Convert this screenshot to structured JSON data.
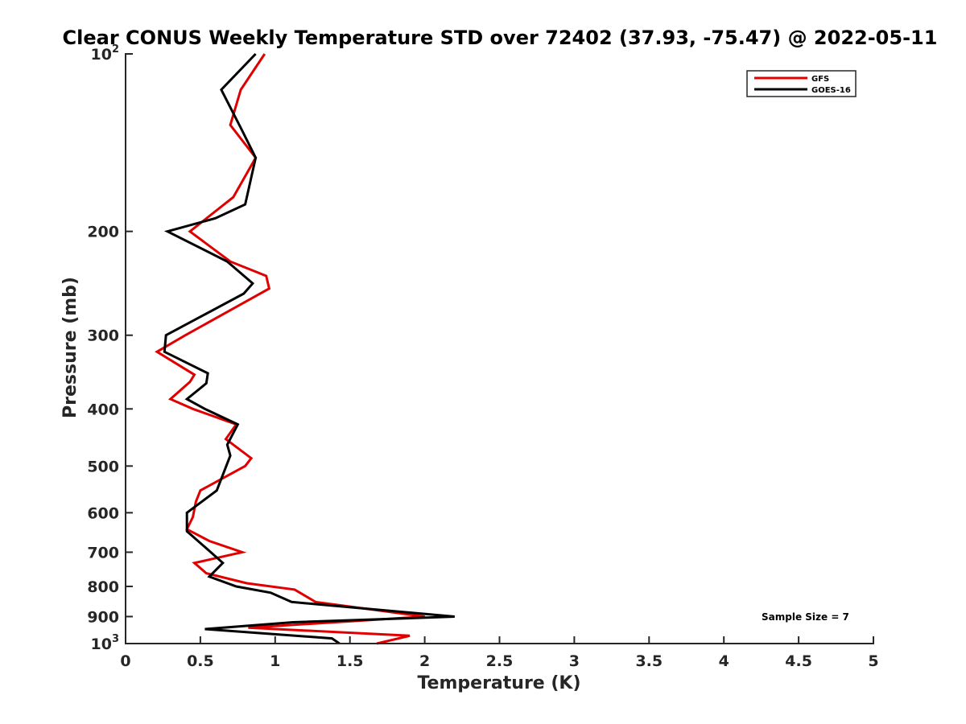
{
  "chart_data": {
    "type": "line",
    "title": "Clear CONUS Weekly Temperature STD over 72402 (37.93, -75.47) @ 2022-05-11",
    "xlabel": "Temperature (K)",
    "ylabel": "Pressure (mb)",
    "xlim": [
      0,
      5
    ],
    "ylim": [
      100,
      1000
    ],
    "y_scale": "log",
    "y_reversed": true,
    "x_ticks": [
      "0",
      "0.5",
      "1",
      "1.5",
      "2",
      "2.5",
      "3",
      "3.5",
      "4",
      "4.5",
      "5"
    ],
    "y_ticks": [
      {
        "value": 100,
        "base": "10",
        "exp": "2"
      },
      {
        "value": 200,
        "label": "200"
      },
      {
        "value": 300,
        "label": "300"
      },
      {
        "value": 400,
        "label": "400"
      },
      {
        "value": 500,
        "label": "500"
      },
      {
        "value": 600,
        "label": "600"
      },
      {
        "value": 700,
        "label": "700"
      },
      {
        "value": 800,
        "label": "800"
      },
      {
        "value": 900,
        "label": "900"
      },
      {
        "value": 1000,
        "base": "10",
        "exp": "3"
      }
    ],
    "grid": false,
    "legend_position": "top-right",
    "annotation": "Sample Size = 7",
    "series": [
      {
        "name": "GFS",
        "color": "#e00000",
        "points": [
          [
            0.93,
            100
          ],
          [
            0.77,
            115
          ],
          [
            0.7,
            132
          ],
          [
            0.87,
            150
          ],
          [
            0.72,
            175
          ],
          [
            0.43,
            200
          ],
          [
            0.7,
            225
          ],
          [
            0.94,
            238
          ],
          [
            0.96,
            250
          ],
          [
            0.4,
            300
          ],
          [
            0.21,
            320
          ],
          [
            0.46,
            350
          ],
          [
            0.43,
            360
          ],
          [
            0.3,
            385
          ],
          [
            0.45,
            400
          ],
          [
            0.74,
            425
          ],
          [
            0.67,
            450
          ],
          [
            0.84,
            485
          ],
          [
            0.8,
            500
          ],
          [
            0.5,
            550
          ],
          [
            0.47,
            575
          ],
          [
            0.45,
            610
          ],
          [
            0.41,
            640
          ],
          [
            0.56,
            670
          ],
          [
            0.78,
            700
          ],
          [
            0.46,
            730
          ],
          [
            0.54,
            760
          ],
          [
            0.81,
            790
          ],
          [
            1.13,
            810
          ],
          [
            1.27,
            850
          ],
          [
            2.0,
            900
          ],
          [
            0.82,
            940
          ],
          [
            1.9,
            970
          ],
          [
            1.68,
            1000
          ]
        ]
      },
      {
        "name": "GOES-16",
        "color": "#000000",
        "points": [
          [
            0.87,
            100
          ],
          [
            0.64,
            115
          ],
          [
            0.78,
            135
          ],
          [
            0.87,
            150
          ],
          [
            0.8,
            180
          ],
          [
            0.6,
            190
          ],
          [
            0.28,
            200
          ],
          [
            0.68,
            225
          ],
          [
            0.85,
            245
          ],
          [
            0.79,
            255
          ],
          [
            0.27,
            300
          ],
          [
            0.26,
            320
          ],
          [
            0.55,
            348
          ],
          [
            0.54,
            362
          ],
          [
            0.41,
            385
          ],
          [
            0.53,
            400
          ],
          [
            0.75,
            425
          ],
          [
            0.68,
            460
          ],
          [
            0.7,
            480
          ],
          [
            0.61,
            550
          ],
          [
            0.41,
            600
          ],
          [
            0.41,
            645
          ],
          [
            0.57,
            700
          ],
          [
            0.65,
            730
          ],
          [
            0.56,
            770
          ],
          [
            0.74,
            800
          ],
          [
            0.97,
            820
          ],
          [
            1.11,
            850
          ],
          [
            2.2,
            900
          ],
          [
            1.12,
            920
          ],
          [
            0.53,
            945
          ],
          [
            1.38,
            980
          ],
          [
            1.43,
            1000
          ]
        ]
      }
    ]
  }
}
